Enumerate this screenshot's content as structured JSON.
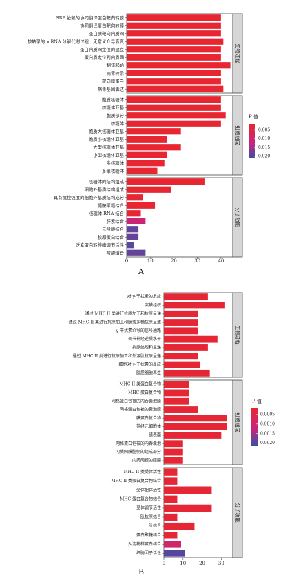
{
  "chart_data": [
    {
      "type": "bar",
      "orientation": "horizontal",
      "panel_label": "A",
      "legend_title": "P 值",
      "legend_ticks": [
        "0.005",
        "0.010",
        "0.015",
        "0.020"
      ],
      "color_range": [
        0.0,
        0.022
      ],
      "color_low": "#e8262e",
      "color_high": "#3a4fa6",
      "xlim": [
        0,
        45
      ],
      "xticks": [
        0,
        10,
        20,
        30,
        40
      ],
      "facets": [
        {
          "name": "生物过程",
          "categories": [
            "SRP 依赖的协同翻译蛋白靶向转膜",
            "协同翻译蛋白靶向转膜",
            "蛋白质靶向内质网",
            "核转录的 mRNA 分解代谢过程，无意义介导衰变",
            "蛋白内质网定位的建立",
            "蛋白质定位到内质网",
            "翻译起始",
            "病毒转录",
            "靶向膜蛋白",
            "病毒基因表达"
          ],
          "values": [
            40,
            40,
            40,
            41,
            40,
            40,
            44,
            40,
            40,
            41
          ],
          "pvalues": [
            0.0005,
            0.0005,
            0.0005,
            0.0005,
            0.0005,
            0.0005,
            0.0005,
            0.0005,
            0.0005,
            0.0005
          ]
        },
        {
          "name": "细胞组成",
          "categories": [
            "胞质核糖体",
            "核糖体亚基",
            "胞质部分",
            "核糖体",
            "胞质大核糖体亚基",
            "胞质小核糖体亚基",
            "大型核糖体亚基",
            "小型核糖体亚基",
            "多核糖体",
            "多聚核糖体"
          ],
          "values": [
            40,
            40,
            42,
            40,
            23,
            17,
            23,
            17,
            16,
            13
          ],
          "pvalues": [
            0.0005,
            0.0005,
            0.0005,
            0.0005,
            0.0005,
            0.0005,
            0.0005,
            0.0005,
            0.0005,
            0.0005
          ]
        },
        {
          "name": "分子功能",
          "categories": [
            "核糖体的结构组成",
            "细胞外基质结构组成",
            "具有抗拉强度的细胞外基质结构成分",
            "糖胺聚糖结合",
            "核糖体 RNA 结合",
            "肝素结合",
            "一元羧酸结合",
            "胶原蛋白结合",
            "泛素蛋白转移酶调节活性",
            "羧酸结合"
          ],
          "values": [
            33,
            19,
            7,
            12,
            6,
            8,
            5,
            5,
            3,
            8
          ],
          "pvalues": [
            0.0005,
            0.0005,
            0.0005,
            0.0005,
            0.0005,
            0.011,
            0.019,
            0.019,
            0.02,
            0.019
          ]
        }
      ]
    },
    {
      "type": "bar",
      "orientation": "horizontal",
      "panel_label": "B",
      "legend_title": "P 值",
      "legend_ticks": [
        "0.0005",
        "0.0010",
        "0.0015",
        "0.0020"
      ],
      "color_range": [
        0.0,
        0.0023
      ],
      "color_low": "#e8262e",
      "color_high": "#3a4fa6",
      "xlim": [
        0,
        36
      ],
      "xticks": [
        0,
        10,
        20,
        30
      ],
      "facets": [
        {
          "name": "生物过程",
          "categories": [
            "对 γ-干扰素的反应",
            "突触组织",
            "通过 MHC II 类进行抗原加工和抗原呈递",
            "通过 MHC II 类进行抗原加工和肽或多糖抗原呈递",
            "γ-干扰素介导的信号通路",
            "调节神经递质水平",
            "抗原处理和呈递",
            "通过 MHC II 类进行抗原加工和外源肽抗原呈递",
            "细胞对 γ-干扰素的反应",
            "胶质细胞再生"
          ],
          "values": [
            23,
            32,
            18,
            18,
            18,
            28,
            23,
            18,
            19,
            24
          ],
          "pvalues": [
            0.0001,
            0.0001,
            0.0001,
            0.0001,
            0.0001,
            0.0001,
            0.0001,
            0.0001,
            0.0001,
            0.0001
          ]
        },
        {
          "name": "细胞组成",
          "categories": [
            "MHC II 类蛋白复合物",
            "MHC 蛋白复合物",
            "网格蛋白包被的内吞囊泡膜",
            "网格蛋白包被的囊泡膜",
            "膜蛋白复合物",
            "神经元细胞体",
            "膜表面",
            "网格蛋白包被的内吞囊泡",
            "内质网膜腔侧的组成部分",
            "内质网膜的腔面"
          ],
          "values": [
            13,
            13,
            13,
            18,
            33,
            33,
            30,
            10,
            10,
            10
          ],
          "pvalues": [
            0.0001,
            0.0001,
            0.0001,
            0.0001,
            0.0001,
            0.0001,
            0.0001,
            0.0001,
            0.0001,
            0.0001
          ]
        },
        {
          "name": "分子功能",
          "categories": [
            "MHC II 类受体活性",
            "MHC II 类蛋白复合物结合",
            "受体配体活性",
            "MHC 蛋白复合物结合",
            "受体调节活性",
            "肽抗原结合",
            "肽结合",
            "蛋白聚糖结合",
            "β-淀粉样蛋白结合",
            "细胞因子活性"
          ],
          "values": [
            7,
            7,
            25,
            7,
            25,
            7,
            16,
            7,
            9,
            11
          ],
          "pvalues": [
            0.0001,
            0.0001,
            0.0001,
            0.0001,
            0.0001,
            0.0001,
            0.0001,
            0.0001,
            0.001,
            0.0021
          ]
        }
      ]
    }
  ]
}
